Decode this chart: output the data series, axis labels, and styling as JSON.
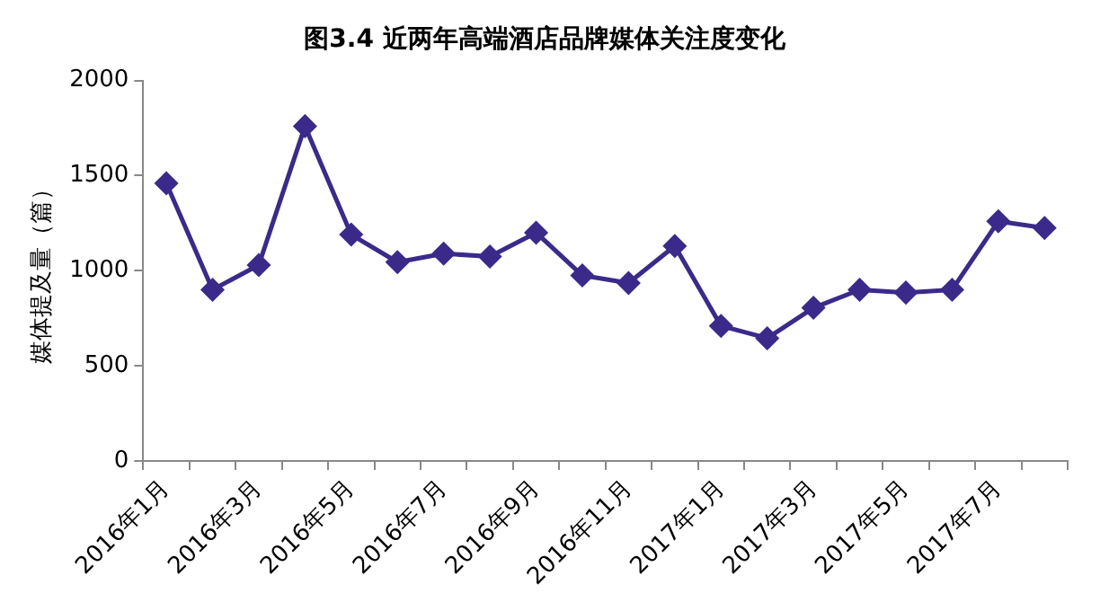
{
  "chart_data": {
    "type": "line",
    "title": "图3.4 近两年高端酒店品牌媒体关注度变化",
    "ylabel": "媒体提及量（篇）",
    "categories": [
      "2016年1月",
      null,
      "2016年3月",
      null,
      "2016年5月",
      null,
      "2016年7月",
      null,
      "2016年9月",
      null,
      "2016年11月",
      null,
      "2017年1月",
      null,
      "2017年3月",
      null,
      "2017年5月",
      null,
      "2017年7月",
      null
    ],
    "series": [
      {
        "color": "#3b2a8a",
        "values": [
          1460,
          900,
          1030,
          1760,
          1190,
          1045,
          1090,
          1075,
          1200,
          975,
          935,
          1130,
          710,
          645,
          805,
          900,
          885,
          900,
          1260,
          1225
        ]
      }
    ],
    "ylim": [
      0,
      2000
    ],
    "yticks": [
      0,
      500,
      1000,
      1500,
      2000
    ],
    "grid": false,
    "legend": false,
    "marker": "diamond",
    "line_style": "solid"
  }
}
